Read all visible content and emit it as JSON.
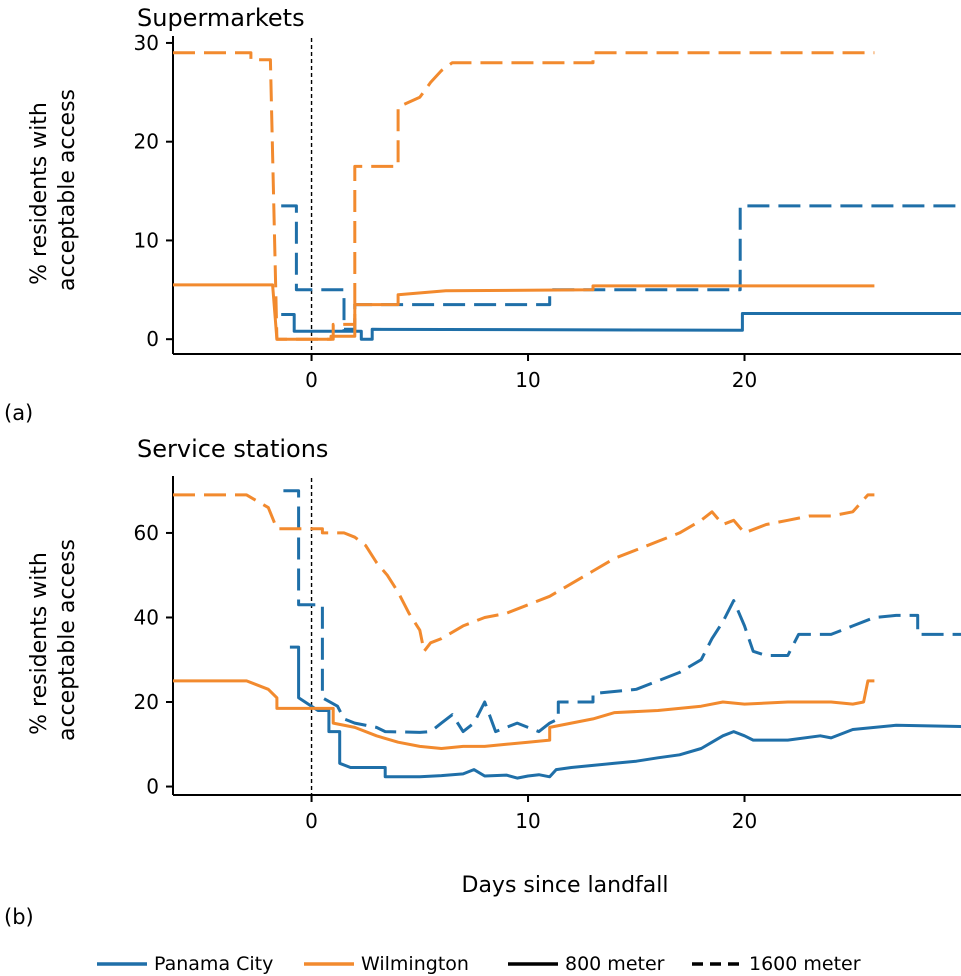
{
  "colors": {
    "panama_city": "#1f6fa8",
    "wilmington": "#f28a2e"
  },
  "xlabel": "Days since landfall",
  "ylabel_lines": [
    "% residents with",
    "acceptable access"
  ],
  "panel_labels": [
    "(a)",
    "(b)"
  ],
  "legend": {
    "items": [
      {
        "label": "Panama City",
        "color": "#1f6fa8",
        "style": "solid"
      },
      {
        "label": "Wilmington",
        "color": "#f28a2e",
        "style": "solid"
      },
      {
        "label": "800 meter",
        "color": "#000000",
        "style": "solid"
      },
      {
        "label": "1600 meter",
        "color": "#000000",
        "style": "dashed"
      }
    ]
  },
  "chart_data": [
    {
      "type": "line",
      "title": "Supermarkets",
      "xlim": [
        -6.4,
        30
      ],
      "ylim": [
        -1.5,
        30.5
      ],
      "xticks": [
        0,
        10,
        20
      ],
      "yticks": [
        0,
        10,
        20,
        30
      ],
      "landfall_line_x": 0,
      "series": [
        {
          "city": "Panama City",
          "radius": "800 meter",
          "dashed": false,
          "points": [
            [
              -1.4,
              2.5
            ],
            [
              -0.8,
              2.5
            ],
            [
              -0.8,
              0.8
            ],
            [
              2.3,
              0.8
            ],
            [
              2.3,
              0
            ],
            [
              2.8,
              0
            ],
            [
              2.8,
              1
            ],
            [
              19.9,
              0.9
            ],
            [
              19.9,
              2.6
            ],
            [
              30,
              2.6
            ]
          ]
        },
        {
          "city": "Panama City",
          "radius": "1600 meter",
          "dashed": true,
          "points": [
            [
              -1.4,
              13.5
            ],
            [
              -0.7,
              13.5
            ],
            [
              -0.7,
              5
            ],
            [
              1.5,
              5
            ],
            [
              1.5,
              1
            ],
            [
              2.0,
              1
            ],
            [
              2.0,
              3.5
            ],
            [
              11,
              3.5
            ],
            [
              11,
              5
            ],
            [
              19.8,
              5
            ],
            [
              19.8,
              13.5
            ],
            [
              30,
              13.5
            ]
          ]
        },
        {
          "city": "Wilmington",
          "radius": "800 meter",
          "dashed": false,
          "points": [
            [
              -6.4,
              5.5
            ],
            [
              -1.8,
              5.5
            ],
            [
              -1.6,
              0
            ],
            [
              0.9,
              0
            ],
            [
              0.9,
              0.3
            ],
            [
              2.0,
              0.3
            ],
            [
              2.0,
              3.5
            ],
            [
              4.0,
              3.5
            ],
            [
              4.0,
              4.5
            ],
            [
              6.2,
              4.9
            ],
            [
              13,
              5
            ],
            [
              13,
              5.4
            ],
            [
              26,
              5.4
            ]
          ]
        },
        {
          "city": "Wilmington",
          "radius": "1600 meter",
          "dashed": true,
          "points": [
            [
              -6.4,
              29
            ],
            [
              -2.8,
              29
            ],
            [
              -2.8,
              28.3
            ],
            [
              -1.9,
              28.3
            ],
            [
              -1.6,
              0
            ],
            [
              1.0,
              0
            ],
            [
              1.0,
              1.5
            ],
            [
              2.0,
              1.5
            ],
            [
              2.0,
              17.5
            ],
            [
              4.0,
              17.5
            ],
            [
              4.0,
              23.5
            ],
            [
              5.0,
              24.5
            ],
            [
              5.5,
              26
            ],
            [
              6.0,
              27.2
            ],
            [
              6.5,
              28
            ],
            [
              13,
              28
            ],
            [
              13,
              29
            ],
            [
              26,
              29
            ]
          ]
        }
      ]
    },
    {
      "type": "line",
      "title": "Service stations",
      "xlim": [
        -6.4,
        30
      ],
      "ylim": [
        -2,
        73
      ],
      "xticks": [
        0,
        10,
        20
      ],
      "yticks": [
        0,
        20,
        40,
        60
      ],
      "landfall_line_x": 0,
      "series": [
        {
          "city": "Panama City",
          "radius": "800 meter",
          "dashed": false,
          "points": [
            [
              -1.0,
              33
            ],
            [
              -0.6,
              33
            ],
            [
              -0.6,
              21
            ],
            [
              0.3,
              18
            ],
            [
              0.8,
              18
            ],
            [
              0.8,
              13
            ],
            [
              1.3,
              13
            ],
            [
              1.3,
              5.5
            ],
            [
              1.8,
              4.5
            ],
            [
              3.4,
              4.5
            ],
            [
              3.4,
              2.3
            ],
            [
              5,
              2.3
            ],
            [
              6,
              2.6
            ],
            [
              7,
              3
            ],
            [
              7.5,
              4
            ],
            [
              8,
              2.5
            ],
            [
              9,
              2.7
            ],
            [
              9.5,
              2
            ],
            [
              10,
              2.5
            ],
            [
              10.5,
              2.8
            ],
            [
              11,
              2.3
            ],
            [
              11.3,
              4
            ],
            [
              12,
              4.5
            ],
            [
              13,
              5
            ],
            [
              14,
              5.5
            ],
            [
              15,
              6
            ],
            [
              16,
              6.8
            ],
            [
              17,
              7.5
            ],
            [
              18,
              9
            ],
            [
              18.5,
              10.5
            ],
            [
              19,
              12
            ],
            [
              19.5,
              13
            ],
            [
              20,
              12
            ],
            [
              20.4,
              11
            ],
            [
              22,
              11
            ],
            [
              23.5,
              12
            ],
            [
              24,
              11.5
            ],
            [
              25,
              13.5
            ],
            [
              27,
              14.5
            ],
            [
              30,
              14.2
            ]
          ]
        },
        {
          "city": "Panama City",
          "radius": "1600 meter",
          "dashed": true,
          "points": [
            [
              -1.3,
              70
            ],
            [
              -0.6,
              70
            ],
            [
              -0.6,
              43
            ],
            [
              0.5,
              43
            ],
            [
              0.5,
              21
            ],
            [
              1.2,
              19
            ],
            [
              1.5,
              16
            ],
            [
              2,
              15
            ],
            [
              3,
              14
            ],
            [
              3.4,
              13
            ],
            [
              5,
              12.8
            ],
            [
              5.5,
              13
            ],
            [
              6,
              15
            ],
            [
              6.5,
              17
            ],
            [
              7,
              13
            ],
            [
              7.5,
              15
            ],
            [
              8,
              20
            ],
            [
              8.5,
              13
            ],
            [
              9,
              14
            ],
            [
              9.5,
              15
            ],
            [
              10,
              14
            ],
            [
              10.5,
              13
            ],
            [
              11,
              15
            ],
            [
              11.4,
              16
            ],
            [
              11.4,
              20
            ],
            [
              13,
              20
            ],
            [
              13,
              22
            ],
            [
              15,
              23
            ],
            [
              16,
              25
            ],
            [
              17,
              27
            ],
            [
              18,
              30
            ],
            [
              18.5,
              35
            ],
            [
              19,
              39
            ],
            [
              19.5,
              44
            ],
            [
              20,
              38
            ],
            [
              20.4,
              32
            ],
            [
              21,
              31
            ],
            [
              22,
              31
            ],
            [
              22.5,
              36
            ],
            [
              24,
              36
            ],
            [
              25,
              38
            ],
            [
              26,
              40
            ],
            [
              27,
              40.5
            ],
            [
              28,
              40.5
            ],
            [
              28,
              36
            ],
            [
              30,
              36
            ]
          ]
        },
        {
          "city": "Wilmington",
          "radius": "800 meter",
          "dashed": false,
          "points": [
            [
              -6.4,
              25
            ],
            [
              -3,
              25
            ],
            [
              -2,
              23
            ],
            [
              -1.6,
              21
            ],
            [
              -1.6,
              18.5
            ],
            [
              1,
              18.5
            ],
            [
              1,
              15
            ],
            [
              2,
              14
            ],
            [
              3,
              12
            ],
            [
              4,
              10.5
            ],
            [
              5,
              9.5
            ],
            [
              6,
              9
            ],
            [
              7,
              9.5
            ],
            [
              8,
              9.5
            ],
            [
              9,
              10
            ],
            [
              10,
              10.5
            ],
            [
              11,
              11
            ],
            [
              11,
              14
            ],
            [
              12,
              15
            ],
            [
              13,
              16
            ],
            [
              14,
              17.5
            ],
            [
              16,
              18
            ],
            [
              18,
              19
            ],
            [
              19,
              20
            ],
            [
              20,
              19.5
            ],
            [
              22,
              20
            ],
            [
              24,
              20
            ],
            [
              25,
              19.5
            ],
            [
              25.5,
              20
            ],
            [
              25.7,
              25
            ],
            [
              26,
              25
            ]
          ]
        },
        {
          "city": "Wilmington",
          "radius": "1600 meter",
          "dashed": true,
          "points": [
            [
              -6.4,
              69
            ],
            [
              -3,
              69
            ],
            [
              -2,
              66
            ],
            [
              -1.6,
              61
            ],
            [
              0.5,
              61
            ],
            [
              0.5,
              60
            ],
            [
              1.5,
              60
            ],
            [
              2,
              59
            ],
            [
              2.5,
              57
            ],
            [
              3,
              53
            ],
            [
              3.5,
              50
            ],
            [
              4,
              46
            ],
            [
              4.5,
              41
            ],
            [
              5,
              37
            ],
            [
              5.2,
              32
            ],
            [
              5.5,
              34
            ],
            [
              6,
              35
            ],
            [
              7,
              38
            ],
            [
              8,
              40
            ],
            [
              9,
              41
            ],
            [
              10,
              43
            ],
            [
              11,
              45
            ],
            [
              12,
              48
            ],
            [
              13,
              51
            ],
            [
              14,
              54
            ],
            [
              15,
              56
            ],
            [
              16,
              58
            ],
            [
              17,
              60
            ],
            [
              18,
              63
            ],
            [
              18.5,
              65
            ],
            [
              19,
              62
            ],
            [
              19.5,
              63
            ],
            [
              20,
              60
            ],
            [
              21,
              62
            ],
            [
              22,
              63
            ],
            [
              23,
              64
            ],
            [
              24,
              64
            ],
            [
              25,
              65
            ],
            [
              25.7,
              69
            ],
            [
              26,
              69
            ]
          ]
        }
      ]
    }
  ]
}
